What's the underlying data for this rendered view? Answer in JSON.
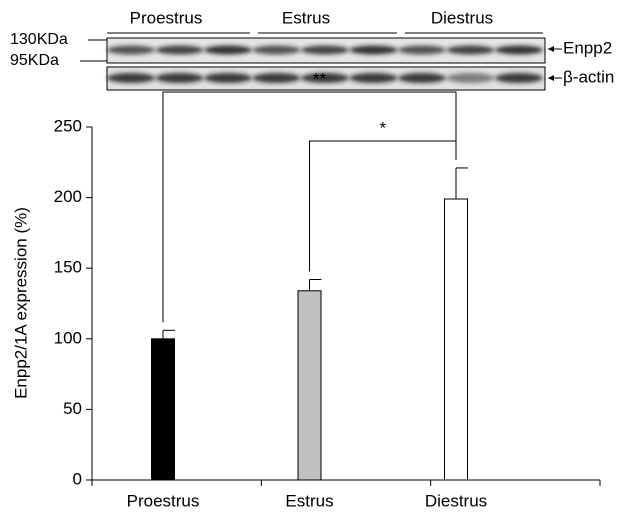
{
  "chart_data": {
    "type": "bar",
    "blot": {
      "groups": [
        "Proestrus",
        "Estrus",
        "Diestrus"
      ],
      "markers": [
        "130KDa",
        "95KDa"
      ],
      "bands": [
        "Enpp2",
        "β-actin"
      ]
    },
    "y_label": "Enpp2/1A expression (%)",
    "categories": [
      "Proestrus",
      "Estrus",
      "Diestrus"
    ],
    "values": [
      100,
      134,
      199
    ],
    "errors": [
      6,
      8,
      22
    ],
    "colors": [
      "#000000",
      "#c0c0c0",
      "#ffffff"
    ],
    "annotations": [
      "**",
      "*"
    ],
    "ylim": [
      0,
      250
    ],
    "yticks": [
      0,
      50,
      100,
      150,
      200,
      250
    ]
  }
}
